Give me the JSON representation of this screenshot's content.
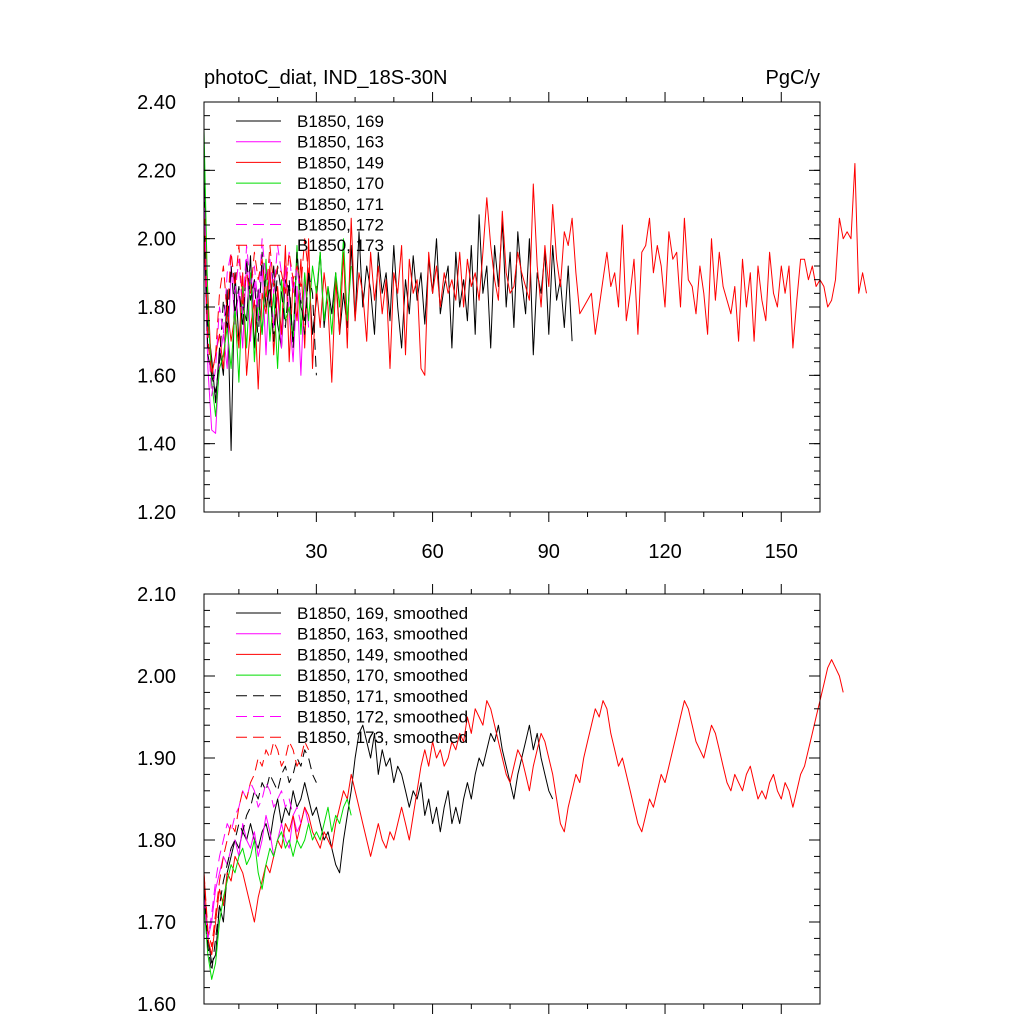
{
  "chart_data": [
    {
      "type": "line",
      "title": "photoC_diat, IND_18S-30N",
      "units": "PgC/y",
      "xlim": [
        1,
        160
      ],
      "ylim": [
        1.2,
        2.4
      ],
      "x_ticks": [
        30,
        60,
        90,
        120,
        150
      ],
      "x_tick_labels": [
        "30",
        "60",
        "90",
        "120",
        "150"
      ],
      "y_ticks": [
        1.2,
        1.4,
        1.6,
        1.8,
        2.0,
        2.2,
        2.4
      ],
      "y_tick_labels": [
        "1.20",
        "1.40",
        "1.60",
        "1.80",
        "2.00",
        "2.20",
        "2.40"
      ],
      "legend_position": "top-left",
      "series": [
        {
          "name": "B1850, 169",
          "color": "#000000",
          "dash": "solid",
          "values": [
            2.2,
            1.75,
            1.65,
            1.52,
            1.68,
            1.6,
            1.85,
            1.38,
            1.9,
            1.7,
            1.8,
            1.76,
            1.95,
            1.68,
            1.85,
            1.72,
            1.9,
            1.8,
            1.92,
            1.75,
            1.68,
            1.88,
            1.85,
            1.7,
            1.96,
            1.8,
            1.76,
            1.9,
            1.72,
            1.82,
            1.96,
            1.74,
            1.86,
            1.78,
            1.9,
            1.72,
            1.84,
            1.74,
            1.98,
            1.76,
            2.02,
            1.8,
            1.92,
            1.85,
            1.72,
            1.96,
            1.84,
            1.9,
            1.76,
            1.98,
            1.8,
            1.68,
            1.88,
            1.78,
            1.95,
            1.82,
            1.9,
            1.75,
            1.94,
            1.84,
            2.0,
            1.78,
            1.86,
            1.92,
            1.68,
            1.96,
            1.8,
            1.88,
            1.76,
            1.98,
            1.72,
            2.07,
            1.84,
            1.92,
            1.68,
            1.98,
            1.86,
            2.05,
            1.8,
            1.96,
            1.74,
            2.02,
            1.88,
            1.78,
            2.0,
            1.66,
            1.9,
            1.84,
            1.96,
            1.72,
            1.98,
            1.82,
            1.88,
            1.74,
            1.92,
            1.7
          ]
        },
        {
          "name": "B1850, 163",
          "color": "#ff00ff",
          "dash": "solid",
          "values": [
            2.02,
            1.62,
            1.44,
            1.43,
            1.65,
            1.72,
            1.62,
            1.92,
            1.75,
            1.85,
            1.68,
            1.94,
            1.7,
            1.88,
            1.76,
            1.92,
            1.66,
            1.9,
            1.74,
            1.84,
            1.68,
            1.92,
            1.78,
            1.64,
            1.86,
            1.6,
            1.88,
            1.74
          ]
        },
        {
          "name": "B1850, 149",
          "color": "#ff0000",
          "dash": "solid",
          "values": [
            2.1,
            1.84,
            1.6,
            1.66,
            1.72,
            1.62,
            1.8,
            1.7,
            1.78,
            1.68,
            1.9,
            1.6,
            1.74,
            1.82,
            1.56,
            1.84,
            1.78,
            1.92,
            1.66,
            1.86,
            1.72,
            1.98,
            1.64,
            1.88,
            1.76,
            1.94,
            1.68,
            2.0,
            1.62,
            1.86,
            1.74,
            1.9,
            1.8,
            1.58,
            1.88,
            1.72,
            1.96,
            1.68,
            2.06,
            1.76,
            1.9,
            1.84,
            1.7,
            1.96,
            1.82,
            1.92,
            1.78,
            1.88,
            1.62,
            1.9,
            1.84,
            1.98,
            1.66,
            1.94,
            1.84,
            1.88,
            1.62,
            1.6,
            1.96,
            1.84,
            1.92,
            1.8,
            1.9,
            1.84,
            1.88,
            1.82,
            1.96,
            1.8,
            1.94,
            1.86,
            1.9,
            1.82,
            1.96,
            2.12,
            1.98,
            1.88,
            1.82,
            2.08,
            1.9,
            1.84,
            1.86,
            1.96,
            1.9,
            1.86,
            1.82,
            2.16,
            1.92,
            1.8,
            1.98,
            1.86,
            2.1,
            1.94,
            1.86,
            2.02,
            1.98,
            2.06,
            1.9,
            1.78,
            1.8,
            1.82,
            1.84,
            1.72,
            1.8,
            1.88,
            1.96,
            1.86,
            1.9,
            1.8,
            2.04,
            1.76,
            1.84,
            1.94,
            1.72,
            1.96,
            1.98,
            2.06,
            1.9,
            1.98,
            1.92,
            1.8,
            2.02,
            1.94,
            1.96,
            1.8,
            2.06,
            1.88,
            1.86,
            1.78,
            1.92,
            1.84,
            1.72,
            2.0,
            1.82,
            1.96,
            1.86,
            1.82,
            1.78,
            1.86,
            1.7,
            1.94,
            1.8,
            1.9,
            1.7,
            1.92,
            1.82,
            1.76,
            1.96,
            1.84,
            1.8,
            1.92,
            1.84,
            1.92,
            1.68,
            1.82,
            1.94,
            1.94,
            1.88,
            1.92,
            1.86,
            1.88,
            1.86,
            1.8,
            1.82,
            1.88,
            2.06,
            2.0,
            2.02,
            2.0,
            2.22,
            1.84,
            1.9,
            1.84
          ]
        },
        {
          "name": "B1850, 170",
          "color": "#00dd00",
          "dash": "solid",
          "values": [
            2.32,
            1.8,
            1.58,
            1.48,
            1.62,
            1.66,
            1.74,
            1.62,
            1.8,
            1.58,
            1.86,
            1.68,
            1.9,
            1.64,
            1.82,
            1.72,
            1.94,
            1.7,
            1.84,
            1.62,
            1.88,
            1.76,
            1.8,
            1.7,
            1.98,
            1.72,
            1.9,
            1.76,
            1.92,
            1.84,
            1.96,
            1.76,
            1.86,
            1.72,
            1.9,
            1.8,
            2.0,
            1.76,
            1.92
          ]
        },
        {
          "name": "B1850, 171",
          "color": "#000000",
          "dash": "long",
          "values": [
            2.06,
            1.66,
            1.6,
            1.55,
            1.64,
            1.82,
            1.74,
            1.92,
            1.78,
            1.86,
            1.74,
            1.94,
            1.82,
            1.88,
            1.7,
            1.96,
            1.8,
            1.86,
            1.7,
            1.92,
            1.84,
            1.74,
            1.88,
            1.68,
            1.96,
            1.82,
            1.72,
            1.9,
            1.84,
            1.6
          ]
        },
        {
          "name": "B1850, 172",
          "color": "#ff00ff",
          "dash": "long",
          "values": [
            2.14,
            1.72,
            1.54,
            1.62,
            1.8,
            1.72,
            1.9,
            1.96,
            1.84,
            1.94,
            1.78,
            1.98,
            1.86,
            1.92,
            1.8,
            2.0,
            1.88,
            1.94,
            1.84,
            1.98,
            1.9,
            1.86,
            1.96,
            1.84,
            1.92,
            1.82
          ]
        },
        {
          "name": "B1850, 173",
          "color": "#ff0000",
          "dash": "long",
          "values": [
            2.04,
            1.7,
            1.6,
            1.66,
            1.84,
            1.92,
            1.78,
            1.96,
            1.86,
            1.98,
            1.8,
            1.9,
            1.84,
            1.96,
            1.88,
            1.94,
            1.82,
            1.98,
            1.86,
            1.92,
            1.9,
            1.84,
            1.96,
            1.88,
            1.92,
            1.86,
            2.0,
            1.9
          ]
        }
      ]
    },
    {
      "type": "line",
      "title": "",
      "xlim": [
        1,
        160
      ],
      "ylim": [
        1.6,
        2.1
      ],
      "x_ticks": [
        30,
        60,
        90,
        120,
        150
      ],
      "y_ticks": [
        1.6,
        1.7,
        1.8,
        1.9,
        2.0,
        2.1
      ],
      "y_tick_labels": [
        "1.60",
        "1.70",
        "1.80",
        "1.90",
        "2.00",
        "2.10"
      ],
      "legend_position": "top-left",
      "series": [
        {
          "name": "B1850, 169, smoothed",
          "color": "#000000",
          "dash": "solid",
          "values": [
            1.73,
            1.68,
            1.65,
            1.66,
            1.72,
            1.7,
            1.76,
            1.78,
            1.8,
            1.79,
            1.81,
            1.8,
            1.82,
            1.8,
            1.79,
            1.81,
            1.82,
            1.8,
            1.83,
            1.85,
            1.82,
            1.84,
            1.83,
            1.86,
            1.84,
            1.85,
            1.87,
            1.85,
            1.83,
            1.84,
            1.82,
            1.8,
            1.81,
            1.79,
            1.77,
            1.76,
            1.8,
            1.83,
            1.86,
            1.9,
            1.93,
            1.94,
            1.92,
            1.9,
            1.93,
            1.88,
            1.91,
            1.89,
            1.9,
            1.87,
            1.89,
            1.88,
            1.86,
            1.84,
            1.86,
            1.85,
            1.87,
            1.83,
            1.85,
            1.82,
            1.84,
            1.81,
            1.84,
            1.86,
            1.82,
            1.84,
            1.82,
            1.85,
            1.87,
            1.85,
            1.88,
            1.9,
            1.89,
            1.91,
            1.93,
            1.92,
            1.94,
            1.91,
            1.89,
            1.87,
            1.85,
            1.88,
            1.9,
            1.92,
            1.94,
            1.91,
            1.93,
            1.9,
            1.88,
            1.86,
            1.85
          ]
        },
        {
          "name": "B1850, 163, smoothed",
          "color": "#ff00ff",
          "dash": "solid",
          "values": [
            1.72,
            1.68,
            1.7,
            1.74,
            1.76,
            1.78,
            1.77,
            1.79,
            1.8,
            1.78,
            1.82,
            1.8,
            1.79,
            1.81,
            1.78,
            1.8,
            1.83,
            1.81,
            1.78,
            1.8,
            1.82,
            1.8,
            1.79,
            1.83,
            1.81,
            1.82,
            1.84,
            1.82
          ]
        },
        {
          "name": "B1850, 149, smoothed",
          "color": "#ff0000",
          "dash": "solid",
          "values": [
            1.76,
            1.68,
            1.66,
            1.7,
            1.74,
            1.72,
            1.76,
            1.75,
            1.78,
            1.77,
            1.76,
            1.74,
            1.72,
            1.7,
            1.73,
            1.75,
            1.77,
            1.76,
            1.78,
            1.8,
            1.79,
            1.82,
            1.81,
            1.83,
            1.8,
            1.82,
            1.84,
            1.83,
            1.81,
            1.8,
            1.79,
            1.81,
            1.8,
            1.79,
            1.82,
            1.84,
            1.86,
            1.85,
            1.88,
            1.86,
            1.84,
            1.82,
            1.8,
            1.78,
            1.8,
            1.82,
            1.8,
            1.79,
            1.81,
            1.8,
            1.82,
            1.84,
            1.82,
            1.8,
            1.83,
            1.86,
            1.89,
            1.91,
            1.89,
            1.92,
            1.9,
            1.91,
            1.89,
            1.9,
            1.92,
            1.91,
            1.93,
            1.92,
            1.95,
            1.93,
            1.96,
            1.95,
            1.94,
            1.97,
            1.96,
            1.94,
            1.92,
            1.9,
            1.88,
            1.87,
            1.89,
            1.91,
            1.9,
            1.88,
            1.86,
            1.89,
            1.91,
            1.93,
            1.92,
            1.9,
            1.88,
            1.85,
            1.82,
            1.81,
            1.84,
            1.86,
            1.88,
            1.87,
            1.9,
            1.92,
            1.94,
            1.96,
            1.95,
            1.97,
            1.96,
            1.93,
            1.91,
            1.89,
            1.9,
            1.88,
            1.86,
            1.84,
            1.82,
            1.81,
            1.83,
            1.85,
            1.84,
            1.86,
            1.88,
            1.87,
            1.89,
            1.91,
            1.93,
            1.95,
            1.97,
            1.96,
            1.94,
            1.92,
            1.91,
            1.9,
            1.92,
            1.94,
            1.93,
            1.91,
            1.89,
            1.87,
            1.86,
            1.88,
            1.87,
            1.86,
            1.88,
            1.89,
            1.87,
            1.85,
            1.86,
            1.85,
            1.87,
            1.88,
            1.86,
            1.85,
            1.87,
            1.86,
            1.84,
            1.86,
            1.88,
            1.89,
            1.91,
            1.93,
            1.95,
            1.97,
            1.99,
            2.01,
            2.02,
            2.01,
            2.0,
            1.98
          ]
        },
        {
          "name": "B1850, 170, smoothed",
          "color": "#00dd00",
          "dash": "solid",
          "values": [
            1.72,
            1.66,
            1.63,
            1.65,
            1.7,
            1.73,
            1.75,
            1.77,
            1.76,
            1.78,
            1.79,
            1.77,
            1.78,
            1.8,
            1.76,
            1.74,
            1.77,
            1.79,
            1.78,
            1.8,
            1.81,
            1.79,
            1.8,
            1.78,
            1.8,
            1.79,
            1.8,
            1.82,
            1.8,
            1.81,
            1.8,
            1.82,
            1.84,
            1.81,
            1.83,
            1.82,
            1.84,
            1.85,
            1.83
          ]
        },
        {
          "name": "B1850, 171, smoothed",
          "color": "#000000",
          "dash": "long",
          "values": [
            1.74,
            1.67,
            1.64,
            1.68,
            1.72,
            1.75,
            1.77,
            1.79,
            1.8,
            1.82,
            1.81,
            1.83,
            1.84,
            1.86,
            1.85,
            1.87,
            1.86,
            1.88,
            1.87,
            1.86,
            1.88,
            1.89,
            1.87,
            1.88,
            1.9,
            1.89,
            1.91,
            1.9,
            1.88,
            1.87
          ]
        },
        {
          "name": "B1850, 172, smoothed",
          "color": "#ff00ff",
          "dash": "long",
          "values": [
            1.73,
            1.68,
            1.71,
            1.75,
            1.78,
            1.8,
            1.82,
            1.81,
            1.83,
            1.84,
            1.86,
            1.85,
            1.87,
            1.86,
            1.84,
            1.85,
            1.87,
            1.86,
            1.84,
            1.85,
            1.86,
            1.84,
            1.85,
            1.83,
            1.84,
            1.82
          ]
        },
        {
          "name": "B1850, 173, smoothed",
          "color": "#ff0000",
          "dash": "long",
          "values": [
            1.76,
            1.69,
            1.67,
            1.71,
            1.75,
            1.78,
            1.8,
            1.82,
            1.81,
            1.84,
            1.86,
            1.85,
            1.87,
            1.88,
            1.9,
            1.89,
            1.91,
            1.9,
            1.92,
            1.91,
            1.89,
            1.9,
            1.92,
            1.91,
            1.89,
            1.9,
            1.92,
            1.91
          ]
        }
      ]
    }
  ]
}
